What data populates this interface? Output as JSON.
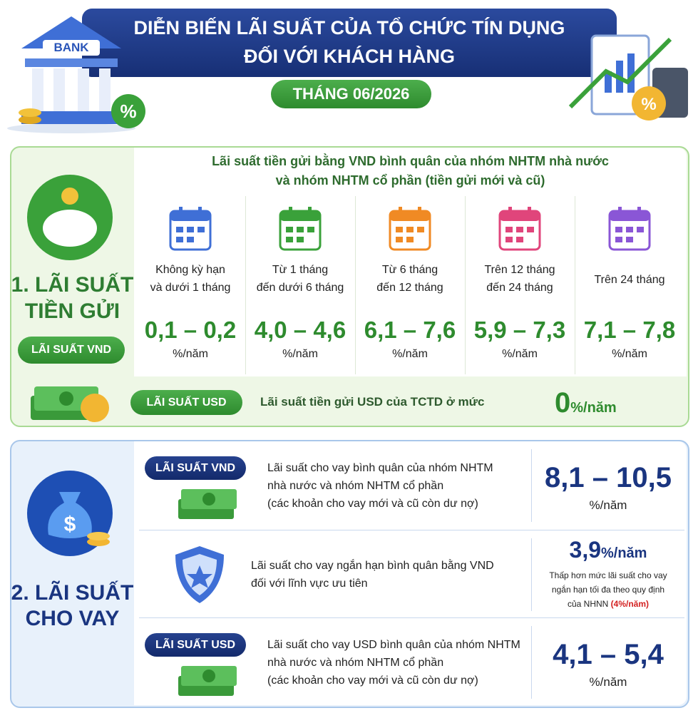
{
  "header": {
    "bank_sign": "BANK",
    "title_line1": "DIỄN BIẾN LÃI SUẤT CỦA TỔ CHỨC TÍN DỤNG",
    "title_line2": "ĐỐI VỚI KHÁCH HÀNG",
    "period": "THÁNG 06/2026"
  },
  "deposit": {
    "heading_line1": "1. LÃI SUẤT",
    "heading_line2": "TIỀN GỬI",
    "badge": "LÃI SUẤT VND",
    "table_title_line1": "Lãi suất tiền gửi bằng VND bình quân của nhóm NHTM nhà nước",
    "table_title_line2": "và nhóm NHTM cổ phần (tiền gửi mới và cũ)",
    "terms": [
      {
        "label_line1": "Không kỳ hạn",
        "label_line2": "và dưới 1 tháng",
        "rate": "0,1 – 0,2",
        "unit": "%/năm"
      },
      {
        "label_line1": "Từ 1 tháng",
        "label_line2": "đến dưới 6 tháng",
        "rate": "4,0 – 4,6",
        "unit": "%/năm"
      },
      {
        "label_line1": "Từ 6 tháng",
        "label_line2": "đến 12 tháng",
        "rate": "6,1 – 7,6",
        "unit": "%/năm"
      },
      {
        "label_line1": "Trên 12 tháng",
        "label_line2": "đến 24 tháng",
        "rate": "5,9 – 7,3",
        "unit": "%/năm"
      },
      {
        "label_line1": "Trên 24 tháng",
        "rate": "7,1 – 7,8",
        "unit": "%/năm"
      }
    ],
    "usd": {
      "badge": "LÃI SUẤT USD",
      "text": "Lãi suất tiền gửi USD của TCTD ở mức",
      "rate": "0",
      "unit": "%/năm"
    }
  },
  "lending": {
    "heading_line1": "2. LÃI SUẤT",
    "heading_line2": "CHO VAY",
    "rows": [
      {
        "badge": "LÃI SUẤT VND",
        "lines": [
          "Lãi suất cho vay bình quân của nhóm NHTM",
          "nhà nước và nhóm NHTM cổ phần",
          "(các khoản cho vay mới và cũ còn dư nợ)"
        ],
        "rate": "8,1 – 10,5",
        "unit": "%/năm"
      },
      {
        "lines": [
          "Lãi suất cho vay ngắn hạn bình quân bằng VND",
          "đối với lĩnh vực ưu tiên"
        ],
        "rate": "3,9",
        "unit": "%/năm",
        "note_lines": [
          "Thấp hơn mức lãi suất cho vay",
          "ngắn hạn tối đa theo quy định",
          "của NHNN"
        ],
        "note_highlight": "(4%/năm)"
      },
      {
        "badge": "LÃI SUẤT USD",
        "lines": [
          "Lãi suất cho vay USD bình quân của nhóm NHTM",
          "nhà nước và nhóm NHTM cổ phần",
          "(các khoản cho vay mới và cũ còn dư nợ)"
        ],
        "rate": "4,1 – 5,4",
        "unit": "%/năm"
      }
    ]
  }
}
